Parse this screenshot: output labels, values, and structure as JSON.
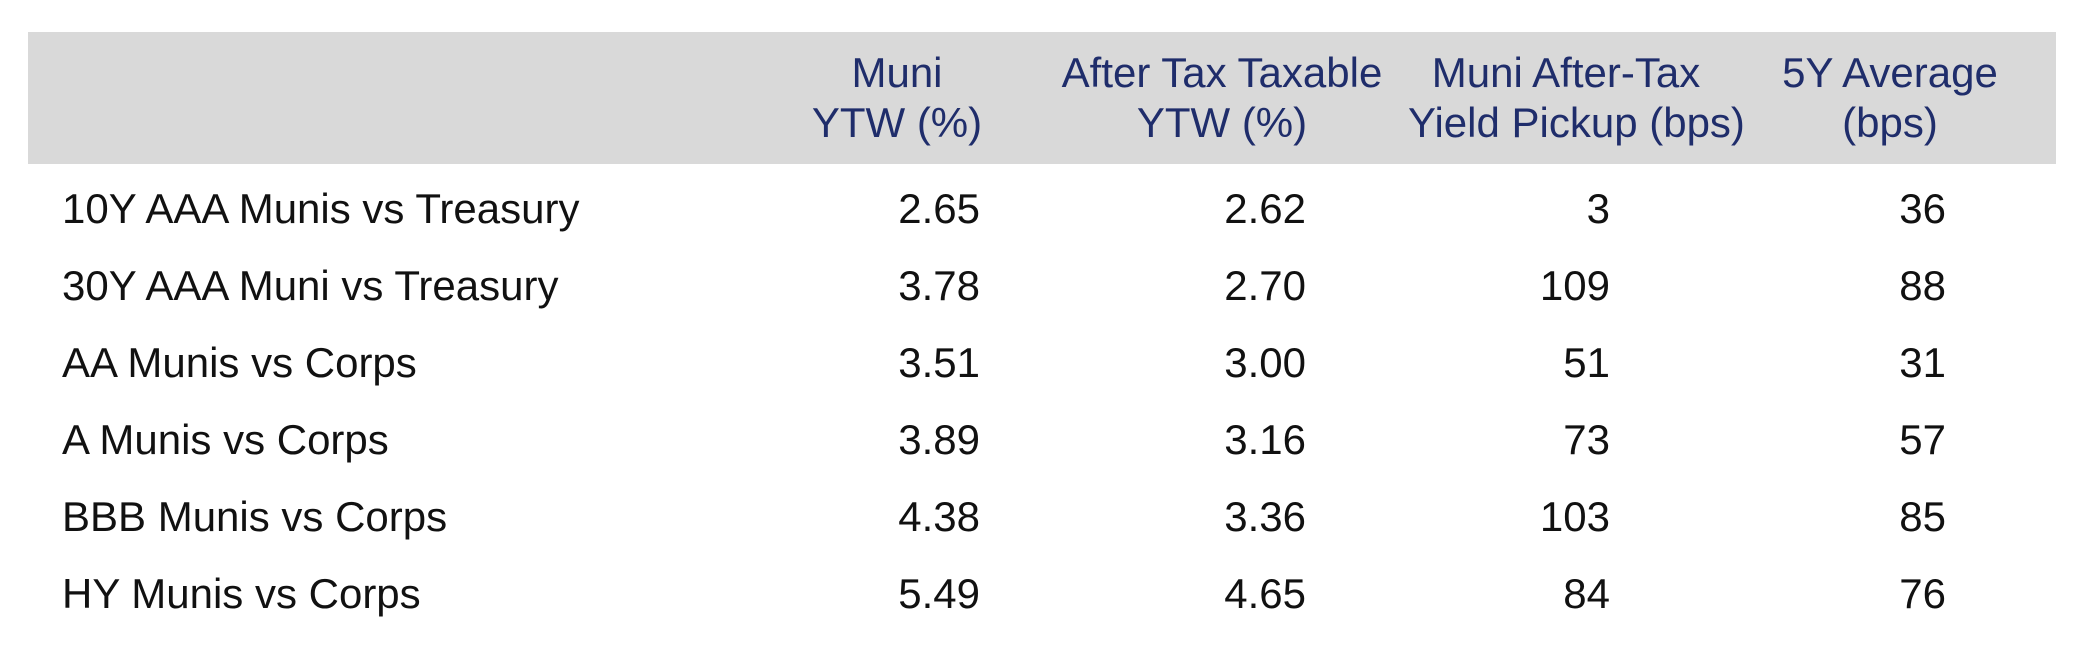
{
  "chart_data": {
    "type": "table",
    "columns": [
      [
        "Muni",
        "YTW (%)"
      ],
      [
        "After Tax Taxable",
        "YTW (%)"
      ],
      [
        "Muni After-Tax",
        "Yield Pickup (bps)"
      ],
      [
        "5Y Average",
        "(bps)"
      ]
    ],
    "rows": [
      {
        "label": "10Y AAA Munis vs Treasury",
        "values": [
          "2.65",
          "2.62",
          "3",
          "36"
        ]
      },
      {
        "label": "30Y AAA Muni vs Treasury",
        "values": [
          "3.78",
          "2.70",
          "109",
          "88"
        ]
      },
      {
        "label": "AA Munis vs Corps",
        "values": [
          "3.51",
          "3.00",
          "51",
          "31"
        ]
      },
      {
        "label": "A Munis vs Corps",
        "values": [
          "3.89",
          "3.16",
          "73",
          "57"
        ]
      },
      {
        "label": "BBB Munis vs Corps",
        "values": [
          "4.38",
          "3.36",
          "103",
          "85"
        ]
      },
      {
        "label": "HY Munis vs Corps",
        "values": [
          "5.49",
          "4.65",
          "84",
          "76"
        ]
      }
    ]
  },
  "colors": {
    "header_background": "#d9d9d9",
    "header_text": "#1f2d6b",
    "body_text": "#111111"
  }
}
